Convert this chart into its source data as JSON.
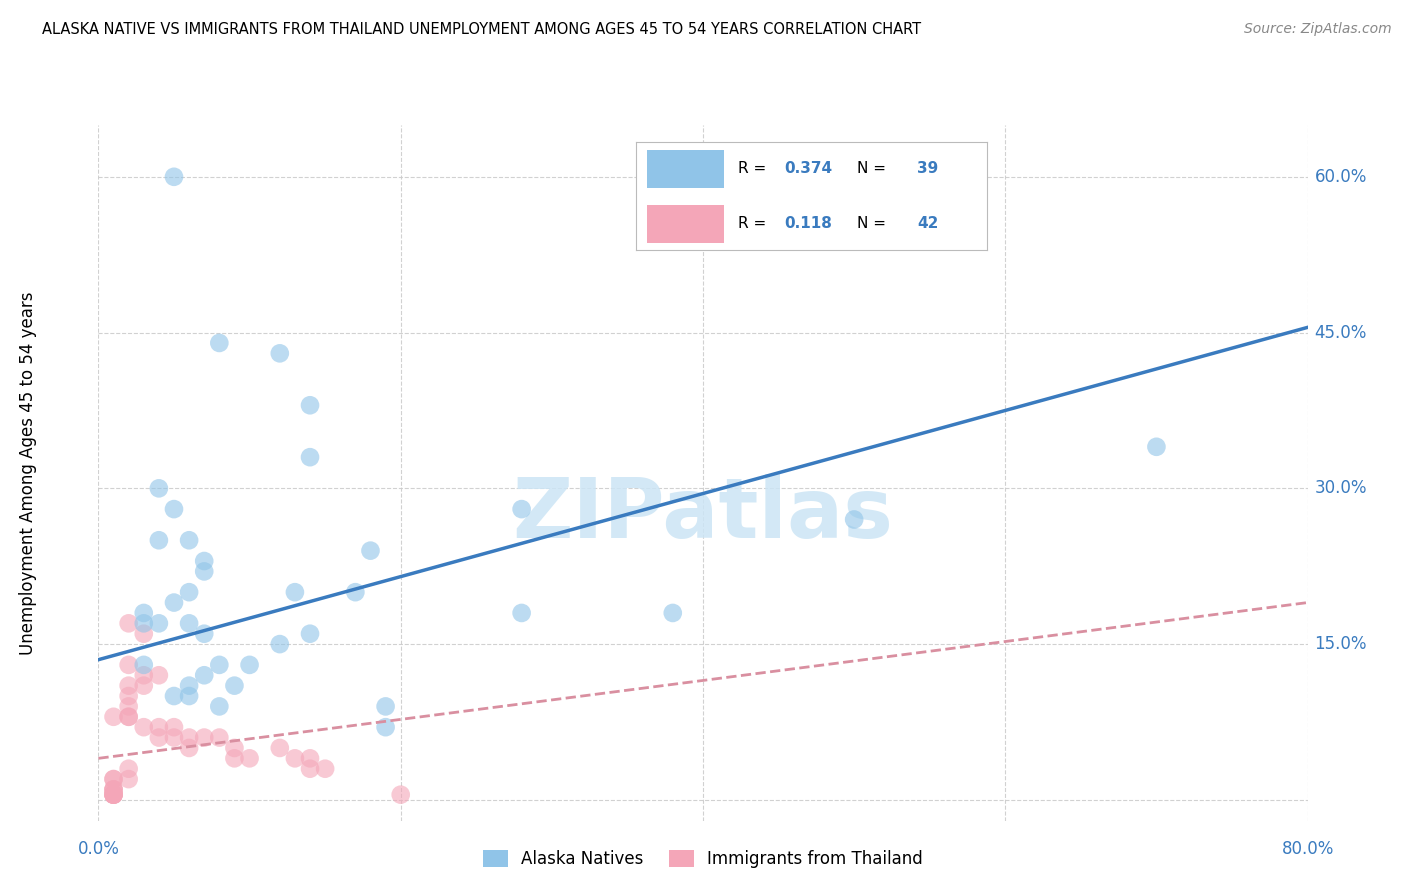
{
  "title": "ALASKA NATIVE VS IMMIGRANTS FROM THAILAND UNEMPLOYMENT AMONG AGES 45 TO 54 YEARS CORRELATION CHART",
  "source": "Source: ZipAtlas.com",
  "ylabel": "Unemployment Among Ages 45 to 54 years",
  "xlim": [
    0.0,
    0.8
  ],
  "ylim": [
    -0.02,
    0.65
  ],
  "xticks": [
    0.0,
    0.2,
    0.4,
    0.6,
    0.8
  ],
  "xticklabels": [
    "0.0%",
    "",
    "",
    "",
    "80.0%"
  ],
  "yticks": [
    0.0,
    0.15,
    0.3,
    0.45,
    0.6
  ],
  "yticklabels": [
    "",
    "15.0%",
    "30.0%",
    "45.0%",
    "60.0%"
  ],
  "blue_R": 0.374,
  "blue_N": 39,
  "pink_R": 0.118,
  "pink_N": 42,
  "blue_color": "#90c4e8",
  "pink_color": "#f4a6b8",
  "blue_line_color": "#3a7bbf",
  "pink_line_color": "#d98fa0",
  "text_blue_color": "#3a7bbf",
  "legend_blue_label": "Alaska Natives",
  "legend_pink_label": "Immigrants from Thailand",
  "watermark_text": "ZIPatlas",
  "watermark_color": "#cce5f5",
  "blue_scatter_x": [
    0.05,
    0.12,
    0.08,
    0.14,
    0.14,
    0.04,
    0.05,
    0.04,
    0.06,
    0.07,
    0.07,
    0.06,
    0.05,
    0.04,
    0.06,
    0.18,
    0.17,
    0.08,
    0.09,
    0.07,
    0.06,
    0.06,
    0.08,
    0.28,
    0.28,
    0.38,
    0.5,
    0.7,
    0.03,
    0.03,
    0.03,
    0.05,
    0.12,
    0.13,
    0.14,
    0.19,
    0.19,
    0.1,
    0.07
  ],
  "blue_scatter_y": [
    0.6,
    0.43,
    0.44,
    0.38,
    0.33,
    0.3,
    0.28,
    0.25,
    0.25,
    0.23,
    0.22,
    0.2,
    0.19,
    0.17,
    0.17,
    0.24,
    0.2,
    0.13,
    0.11,
    0.12,
    0.11,
    0.1,
    0.09,
    0.28,
    0.18,
    0.18,
    0.27,
    0.34,
    0.18,
    0.17,
    0.13,
    0.1,
    0.15,
    0.2,
    0.16,
    0.09,
    0.07,
    0.13,
    0.16
  ],
  "pink_scatter_x": [
    0.02,
    0.03,
    0.02,
    0.03,
    0.04,
    0.02,
    0.03,
    0.02,
    0.02,
    0.01,
    0.02,
    0.02,
    0.03,
    0.04,
    0.04,
    0.05,
    0.05,
    0.06,
    0.06,
    0.07,
    0.08,
    0.09,
    0.09,
    0.1,
    0.12,
    0.13,
    0.14,
    0.14,
    0.15,
    0.02,
    0.02,
    0.01,
    0.01,
    0.01,
    0.01,
    0.01,
    0.01,
    0.01,
    0.01,
    0.01,
    0.01,
    0.2
  ],
  "pink_scatter_y": [
    0.17,
    0.16,
    0.13,
    0.12,
    0.12,
    0.11,
    0.11,
    0.1,
    0.09,
    0.08,
    0.08,
    0.08,
    0.07,
    0.07,
    0.06,
    0.07,
    0.06,
    0.06,
    0.05,
    0.06,
    0.06,
    0.04,
    0.05,
    0.04,
    0.05,
    0.04,
    0.04,
    0.03,
    0.03,
    0.03,
    0.02,
    0.02,
    0.02,
    0.01,
    0.01,
    0.01,
    0.005,
    0.005,
    0.005,
    0.005,
    0.005,
    0.005
  ],
  "blue_line_y_start": 0.135,
  "blue_line_y_end": 0.455,
  "pink_line_y_start": 0.04,
  "pink_line_y_end": 0.19
}
